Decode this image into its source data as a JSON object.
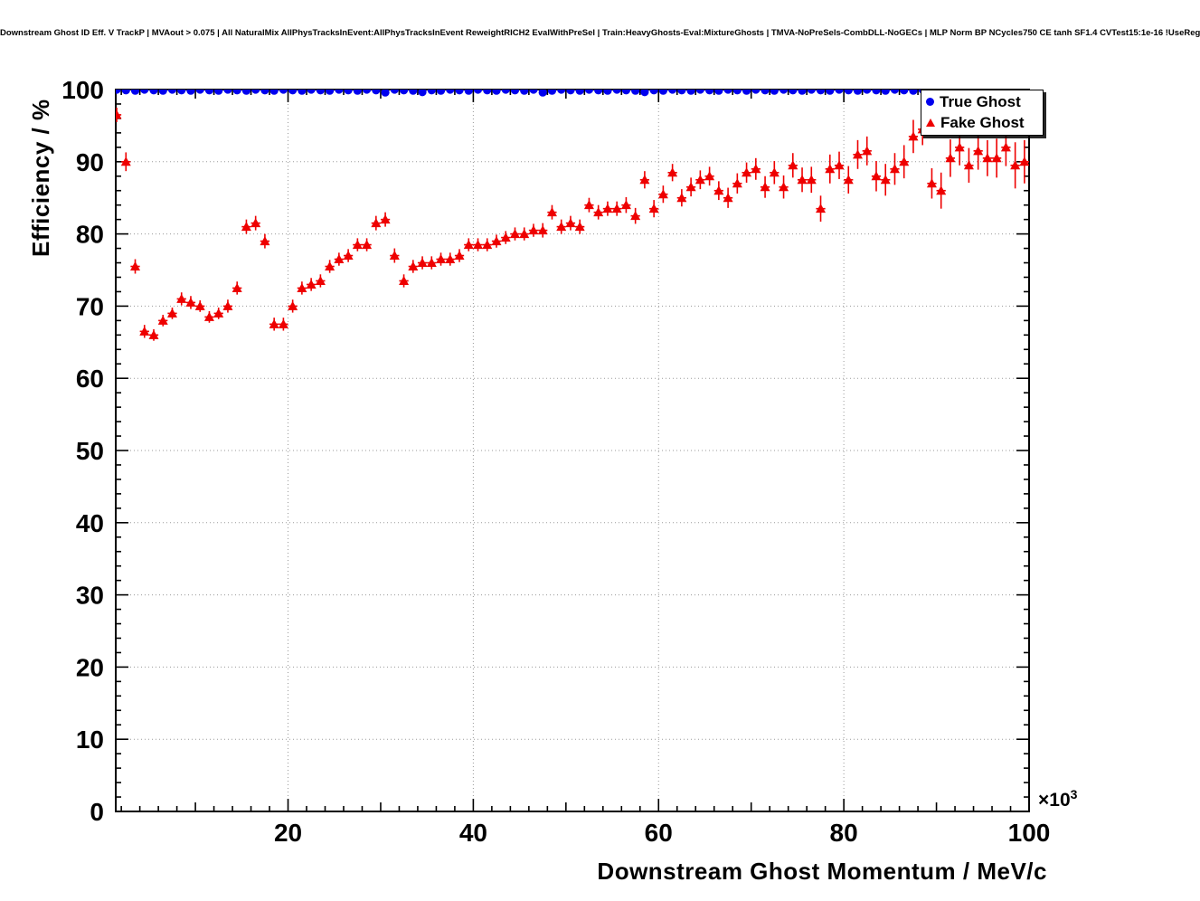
{
  "title": "Downstream Ghost ID Eff. V TrackP | MVAout > 0.075 | All NaturalMix AllPhysTracksInEvent:AllPhysTracksInEvent ReweightRICH2 EvalWithPreSel | Train:HeavyGhosts-Eval:MixtureGhosts | TMVA-NoPreSels-CombDLL-NoGECs | MLP Norm BP NCycles750 CE tanh SF1.4 CVTest15:1e-16 !UseReg",
  "x_exponent": {
    "base": "×10",
    "power": "3"
  },
  "legend": {
    "entries": [
      {
        "label": "True Ghost",
        "marker": "circle",
        "color": "#0000ee"
      },
      {
        "label": "Fake Ghost",
        "marker": "triangle",
        "color": "#ee0000"
      }
    ]
  },
  "colors": {
    "frame": "#000000",
    "grid": "#9a9a9a",
    "true_ghost": "#0000ee",
    "fake_ghost": "#ee0000"
  },
  "chart_data": {
    "type": "scatter",
    "title": "Downstream Ghost ID Eff. V TrackP | MVAout > 0.075 | All NaturalMix AllPhysTracksInEvent:AllPhysTracksInEvent ReweightRICH2 EvalWithPreSel | Train:HeavyGhosts-Eval:MixtureGhosts | TMVA-NoPreSels-CombDLL-NoGECs | MLP Norm BP NCycles750 CE tanh SF1.4 CVTest15:1e-16 !UseReg",
    "xlabel": "Downstream Ghost Momentum / MeV/c",
    "ylabel": "Efficiency / %",
    "x_unit_multiplier": "1e3",
    "xlim": [
      1.4,
      100
    ],
    "ylim": [
      0,
      100
    ],
    "x_major_ticks": [
      20,
      40,
      60,
      80,
      100
    ],
    "x_minor_step": 2,
    "y_major_ticks": [
      0,
      10,
      20,
      30,
      40,
      50,
      60,
      70,
      80,
      90,
      100
    ],
    "y_minor_step": 2,
    "grid": true,
    "legend_position": "top-right",
    "series": [
      {
        "name": "True Ghost",
        "marker": "circle",
        "color": "#0000ee",
        "x": [
          1.5,
          2.5,
          3.5,
          4.5,
          5.5,
          6.5,
          7.5,
          8.5,
          9.5,
          10.5,
          11.5,
          12.5,
          13.5,
          14.5,
          15.5,
          16.5,
          17.5,
          18.5,
          19.5,
          20.5,
          21.5,
          22.5,
          23.5,
          24.5,
          25.5,
          26.5,
          27.5,
          28.5,
          29.5,
          30.5,
          31.5,
          32.5,
          33.5,
          34.5,
          35.5,
          36.5,
          37.5,
          38.5,
          39.5,
          40.5,
          41.5,
          42.5,
          43.5,
          44.5,
          45.5,
          46.5,
          47.5,
          48.5,
          49.5,
          50.5,
          51.5,
          52.5,
          53.5,
          54.5,
          55.5,
          56.5,
          57.5,
          58.5,
          59.5,
          60.5,
          61.5,
          62.5,
          63.5,
          64.5,
          65.5,
          66.5,
          67.5,
          68.5,
          69.5,
          70.5,
          71.5,
          72.5,
          73.5,
          74.5,
          75.5,
          76.5,
          77.5,
          78.5,
          79.5,
          80.5,
          81.5,
          82.5,
          83.5,
          84.5,
          85.5,
          86.5,
          87.5,
          88.5,
          89.5,
          90.5,
          91.5,
          92.5,
          93.5,
          94.5,
          95.5,
          96.5,
          97.5,
          98.5,
          99.5
        ],
        "y": [
          100,
          99.9,
          99.85,
          100,
          99.9,
          99.85,
          100,
          99.9,
          99.85,
          100,
          99.9,
          99.85,
          100,
          99.9,
          99.85,
          100,
          99.9,
          99.85,
          100,
          99.9,
          99.85,
          100,
          99.9,
          99.85,
          100,
          99.9,
          99.85,
          100,
          99.9,
          99.6,
          100,
          99.9,
          99.85,
          99.65,
          99.9,
          99.85,
          100,
          99.9,
          99.85,
          100,
          99.9,
          99.85,
          100,
          99.9,
          99.85,
          100,
          99.6,
          99.85,
          100,
          99.9,
          99.85,
          100,
          99.9,
          99.85,
          100,
          99.9,
          99.85,
          99.65,
          99.9,
          99.85,
          100,
          99.9,
          99.85,
          100,
          99.9,
          99.85,
          100,
          99.9,
          99.85,
          100,
          99.9,
          99.85,
          100,
          99.9,
          99.85,
          100,
          99.9,
          99.85,
          100,
          99.9,
          99.85,
          100,
          99.9,
          99.85,
          100,
          99.9,
          99.85,
          100,
          99.6,
          99.85,
          100,
          99.9,
          99.85,
          100,
          99.9,
          99.85,
          100,
          99.9,
          99.85
        ],
        "yerr": 0.12
      },
      {
        "name": "Fake Ghost",
        "marker": "triangle",
        "color": "#ee0000",
        "x": [
          1.5,
          2.5,
          3.5,
          4.5,
          5.5,
          6.5,
          7.5,
          8.5,
          9.5,
          10.5,
          11.5,
          12.5,
          13.5,
          14.5,
          15.5,
          16.5,
          17.5,
          18.5,
          19.5,
          20.5,
          21.5,
          22.5,
          23.5,
          24.5,
          25.5,
          26.5,
          27.5,
          28.5,
          29.5,
          30.5,
          31.5,
          32.5,
          33.5,
          34.5,
          35.5,
          36.5,
          37.5,
          38.5,
          39.5,
          40.5,
          41.5,
          42.5,
          43.5,
          44.5,
          45.5,
          46.5,
          47.5,
          48.5,
          49.5,
          50.5,
          51.5,
          52.5,
          53.5,
          54.5,
          55.5,
          56.5,
          57.5,
          58.5,
          59.5,
          60.5,
          61.5,
          62.5,
          63.5,
          64.5,
          65.5,
          66.5,
          67.5,
          68.5,
          69.5,
          70.5,
          71.5,
          72.5,
          73.5,
          74.5,
          75.5,
          76.5,
          77.5,
          78.5,
          79.5,
          80.5,
          81.5,
          82.5,
          83.5,
          84.5,
          85.5,
          86.5,
          87.5,
          88.5,
          89.5,
          90.5,
          91.5,
          92.5,
          93.5,
          94.5,
          95.5,
          96.5,
          97.5,
          98.5,
          99.5
        ],
        "y": [
          96.5,
          90,
          75.5,
          66.5,
          66,
          68,
          69,
          71,
          70.5,
          70,
          68.5,
          69,
          70,
          72.5,
          81,
          81.5,
          79,
          67.5,
          67.5,
          70,
          72.5,
          73,
          73.5,
          75.5,
          76.5,
          77,
          78.5,
          78.5,
          81.5,
          82,
          77,
          73.5,
          75.5,
          76,
          76,
          76.5,
          76.5,
          77,
          78.5,
          78.5,
          78.5,
          79,
          79.5,
          80,
          80,
          80.5,
          80.5,
          83,
          81,
          81.5,
          81,
          84,
          83,
          83.5,
          83.5,
          84,
          82.5,
          87.5,
          83.5,
          85.5,
          88.5,
          85,
          86.5,
          87.5,
          88,
          86,
          85,
          87,
          88.5,
          89,
          86.5,
          88.5,
          86.5,
          89.5,
          87.5,
          87.5,
          83.5,
          89,
          89.5,
          87.5,
          91,
          91.5,
          88,
          87.5,
          89,
          90,
          93.5,
          94.5,
          87,
          86,
          90.5,
          92,
          89.5,
          91.5,
          90.5,
          90.5,
          92,
          89.5,
          90
        ],
        "yerr": [
          1.0,
          1.3,
          1.0,
          0.9,
          0.8,
          0.8,
          0.8,
          0.9,
          0.9,
          0.8,
          0.8,
          0.8,
          0.9,
          0.9,
          1.0,
          1.0,
          1.0,
          0.9,
          0.9,
          0.9,
          0.9,
          0.9,
          0.9,
          0.9,
          0.9,
          0.9,
          0.9,
          0.9,
          1.0,
          1.0,
          1.0,
          0.9,
          0.9,
          0.9,
          0.9,
          0.9,
          0.9,
          0.9,
          0.9,
          0.9,
          0.9,
          0.9,
          0.9,
          0.9,
          0.9,
          0.9,
          1.0,
          1.0,
          1.0,
          1.0,
          1.0,
          1.0,
          1.0,
          1.0,
          1.0,
          1.1,
          1.1,
          1.2,
          1.2,
          1.2,
          1.2,
          1.2,
          1.3,
          1.3,
          1.3,
          1.3,
          1.4,
          1.4,
          1.4,
          1.5,
          1.5,
          1.6,
          1.6,
          1.7,
          1.7,
          1.8,
          1.8,
          2.0,
          1.9,
          1.9,
          2.0,
          2.0,
          2.1,
          2.2,
          2.2,
          2.3,
          2.3,
          2.2,
          2.1,
          2.5,
          2.6,
          2.5,
          2.4,
          2.6,
          2.5,
          2.7,
          2.6,
          3.2,
          3.0
        ],
        "xerr": 0.5
      }
    ]
  }
}
